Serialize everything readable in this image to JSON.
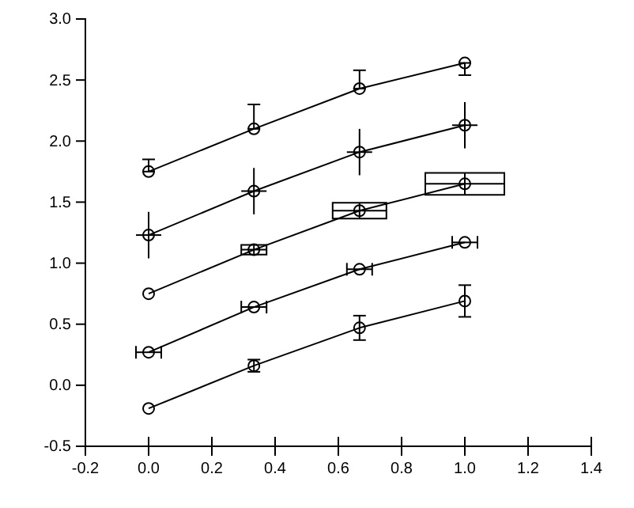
{
  "chart_data": {
    "type": "line",
    "x": [
      0,
      0.333,
      0.667,
      1
    ],
    "xlim": [
      -0.2,
      1.4
    ],
    "xticks": [
      {
        "value": -0.2,
        "label": "-0.2"
      },
      {
        "value": 0,
        "label": "0.0"
      },
      {
        "value": 0.2,
        "label": "0.2"
      },
      {
        "value": 0.4,
        "label": "0.4"
      },
      {
        "value": 0.6,
        "label": "0.6"
      },
      {
        "value": 0.8,
        "label": "0.8"
      },
      {
        "value": 1,
        "label": "1.0"
      },
      {
        "value": 1.2,
        "label": "1.2"
      },
      {
        "value": 1.4,
        "label": "1.4"
      }
    ],
    "ylim": [
      -0.5,
      3.0
    ],
    "yticks": [
      {
        "value": -0.5,
        "label": "-0.5"
      },
      {
        "value": 0,
        "label": "0.0"
      },
      {
        "value": 0.5,
        "label": "0.5"
      },
      {
        "value": 1,
        "label": "1.0"
      },
      {
        "value": 1.5,
        "label": "1.5"
      },
      {
        "value": 2,
        "label": "2.0"
      },
      {
        "value": 2.5,
        "label": "2.5"
      },
      {
        "value": 3,
        "label": "3.0"
      }
    ],
    "grid": false,
    "marker": "circle",
    "line_style": "solid",
    "series": [
      {
        "color": "#000000",
        "values": [
          -0.19,
          0.16,
          0.47,
          0.69
        ],
        "errors": [
          null,
          0.05,
          0.1,
          0.13
        ]
      },
      {
        "color": "#000000",
        "values": [
          0.27,
          0.64,
          0.95,
          1.17
        ],
        "xerrors": [
          0.04,
          0.04,
          0.04,
          0.04
        ]
      },
      {
        "color": "#000000",
        "values": [
          0.75,
          1.11,
          1.43,
          1.65
        ],
        "errors": [
          null,
          0.04,
          0.065,
          0.09
        ],
        "xerrors": [
          null,
          0.04,
          0.085,
          0.125
        ]
      },
      {
        "color": "#000000",
        "values": [
          1.23,
          1.59,
          1.91,
          2.13
        ],
        "errors": [
          0.19,
          0.19,
          0.19,
          0.19
        ],
        "xerrors": [
          0.04,
          0.04,
          0.04,
          0.04
        ]
      },
      {
        "color": "#000000",
        "values": [
          1.75,
          2.1,
          2.43,
          2.64
        ],
        "errors": [
          [
            1.75,
            1.85
          ],
          [
            2.1,
            2.3
          ],
          [
            2.43,
            2.58
          ],
          [
            2.54,
            2.64
          ]
        ]
      }
    ]
  }
}
